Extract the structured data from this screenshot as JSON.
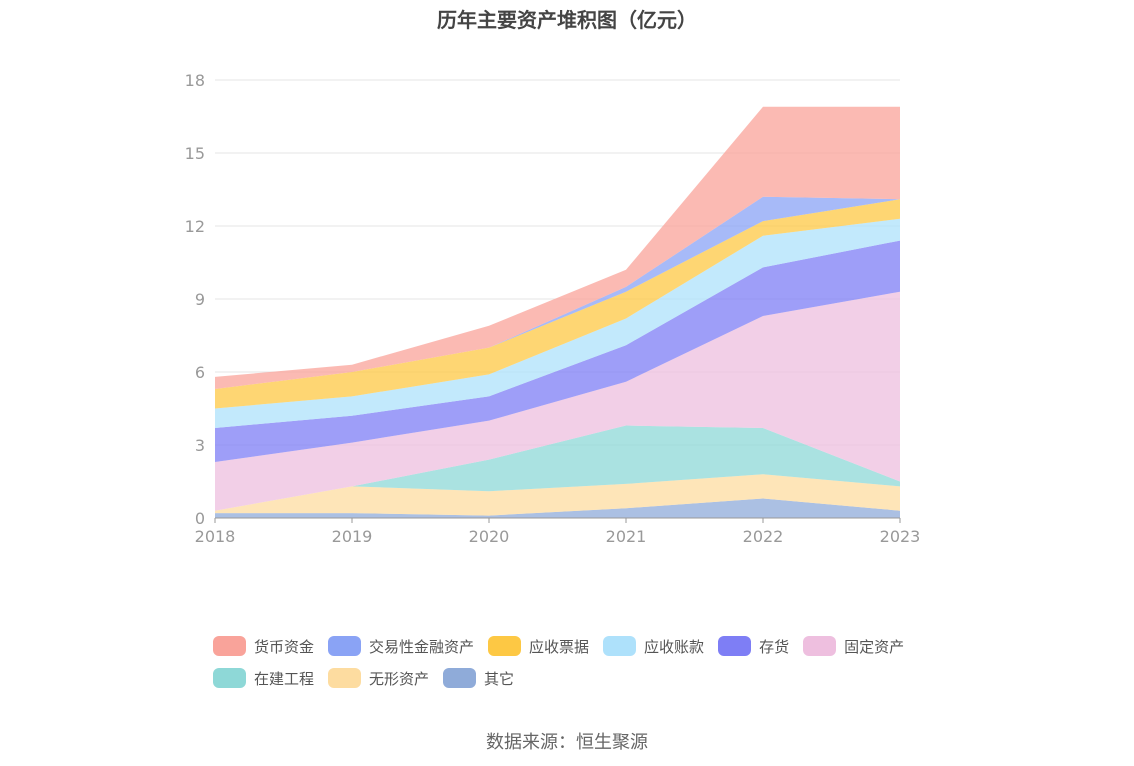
{
  "title": "历年主要资产堆积图（亿元）",
  "source": "数据来源：恒生聚源",
  "chart_data": {
    "type": "area",
    "stacked": true,
    "categories": [
      "2018",
      "2019",
      "2020",
      "2021",
      "2022",
      "2023"
    ],
    "ylim": [
      0,
      18
    ],
    "yticks": [
      "0",
      "3",
      "6",
      "9",
      "12",
      "15",
      "18"
    ],
    "grid": true,
    "legend_position": "bottom",
    "series": [
      {
        "name": "其它",
        "color": "#8fabd9",
        "values": [
          0.2,
          0.2,
          0.1,
          0.4,
          0.8,
          0.3
        ]
      },
      {
        "name": "无形资产",
        "color": "#fddca0",
        "values": [
          0.1,
          1.1,
          1.0,
          1.0,
          1.0,
          1.0
        ]
      },
      {
        "name": "在建工程",
        "color": "#8ed8d7",
        "values": [
          0.0,
          0.0,
          1.3,
          2.4,
          1.9,
          0.2
        ]
      },
      {
        "name": "固定资产",
        "color": "#eebfdf",
        "values": [
          2.0,
          1.8,
          1.6,
          1.8,
          4.6,
          7.8
        ]
      },
      {
        "name": "存货",
        "color": "#7e7ef5",
        "values": [
          1.4,
          1.1,
          1.0,
          1.5,
          2.0,
          2.1
        ]
      },
      {
        "name": "应收账款",
        "color": "#aee1fb",
        "values": [
          0.8,
          0.8,
          0.9,
          1.1,
          1.3,
          0.9
        ]
      },
      {
        "name": "应收票据",
        "color": "#fdc844",
        "values": [
          0.8,
          1.0,
          1.1,
          1.1,
          0.6,
          0.8
        ]
      },
      {
        "name": "交易性金融资产",
        "color": "#8aa3f5",
        "values": [
          0.0,
          0.0,
          0.0,
          0.2,
          1.0,
          0.0
        ]
      },
      {
        "name": "货币资金",
        "color": "#f9a39a",
        "values": [
          0.5,
          0.3,
          0.9,
          0.7,
          3.7,
          3.8
        ]
      }
    ]
  },
  "legend": {
    "rows": [
      [
        "货币资金",
        "交易性金融资产",
        "应收票据",
        "应收账款",
        "存货",
        "固定资产"
      ],
      [
        "在建工程",
        "无形资产",
        "其它"
      ]
    ]
  }
}
